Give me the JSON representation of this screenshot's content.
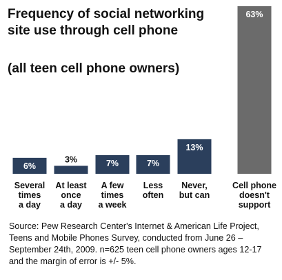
{
  "chart_data": {
    "type": "bar",
    "title": "Frequency of social networking site use through cell phone",
    "subtitle": "(all teen cell phone owners)",
    "categories": [
      "Several times a day",
      "At least once a day",
      "A few times a week",
      "Less often",
      "Never, but can",
      "Cell phone doesn't support"
    ],
    "category_lines": [
      [
        "Several",
        "times",
        "a day"
      ],
      [
        "At least",
        "once",
        "a day"
      ],
      [
        "A few",
        "times",
        "a week"
      ],
      [
        "Less",
        "often"
      ],
      [
        "Never,",
        "but can"
      ],
      [
        "Cell phone",
        "doesn't",
        "support"
      ]
    ],
    "values": [
      6,
      3,
      7,
      7,
      13,
      63
    ],
    "value_labels": [
      "6%",
      "3%",
      "7%",
      "7%",
      "13%",
      "63%"
    ],
    "bar_colors": [
      "#2b3f5c",
      "#2b3f5c",
      "#2b3f5c",
      "#2b3f5c",
      "#2b3f5c",
      "#6b6b6b"
    ],
    "xlabel": "",
    "ylabel": "",
    "ylim": [
      0,
      63
    ],
    "grid": false,
    "legend": "none"
  },
  "source": "Source: Pew Research Center's Internet & American Life Project, Teens and Mobile Phones Survey, conducted from June 26 – September 24th, 2009. n=625 teen cell phone owners ages 12-17 and the margin of error is +/- 5%."
}
